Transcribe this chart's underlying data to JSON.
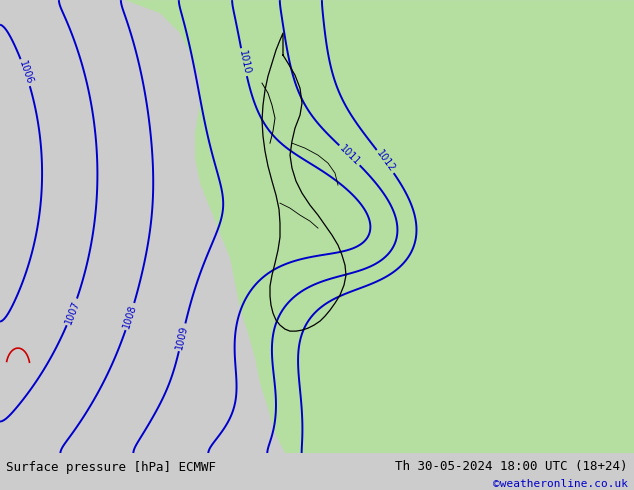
{
  "title_left": "Surface pressure [hPa] ECMWF",
  "title_right": "Th 30-05-2024 18:00 UTC (18+24)",
  "watermark": "©weatheronline.co.uk",
  "bg_color_land": "#b5dfa0",
  "bg_color_sea": "#cccccc",
  "bg_color_sea2": "#c8c8c8",
  "contour_color_blue": "#0000cc",
  "contour_color_black": "#000000",
  "contour_color_red": "#cc0000",
  "bottom_bar_color": "#e0e0e0",
  "bottom_text_color": "#000000",
  "watermark_color": "#0000cc",
  "figsize": [
    6.34,
    4.9
  ],
  "dpi": 100,
  "lw_blue": 1.4,
  "lw_black": 1.6,
  "label_fontsize": 7
}
